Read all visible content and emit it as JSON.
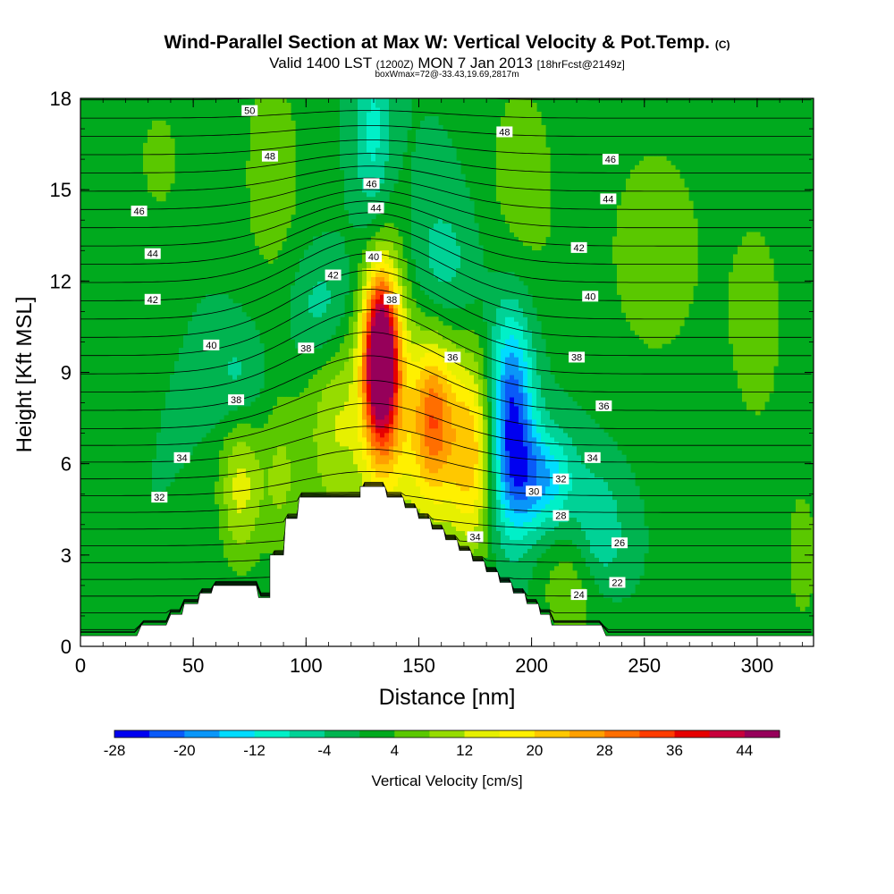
{
  "title": {
    "main": "Wind-Parallel Section at Max W: Vertical Velocity & Pot.Temp.",
    "copyright": "(C)",
    "valid_prefix": "Valid 1400 LST",
    "valid_utc": "(1200Z)",
    "valid_date": "MON 7 Jan 2013",
    "forecast": "[18hrFcst@2149z]",
    "box_info": "boxWmax=72@-33.43,19.69,2817m"
  },
  "chart_data": {
    "type": "heatmap",
    "xlabel": "Distance [nm]",
    "ylabel": "Height [Kft MSL]",
    "xlim": [
      0,
      325
    ],
    "ylim": [
      0,
      18
    ],
    "x_ticks": [
      0,
      50,
      100,
      150,
      200,
      250,
      300
    ],
    "y_ticks": [
      0,
      3,
      6,
      9,
      12,
      15,
      18
    ],
    "colorbar": {
      "label": "Vertical Velocity [cm/s]",
      "tick_labels": [
        "-28",
        "-20",
        "-12",
        "-4",
        "4",
        "12",
        "20",
        "28",
        "36",
        "44"
      ],
      "levels": [
        -28,
        -24,
        -20,
        -16,
        -12,
        -8,
        -4,
        0,
        4,
        8,
        12,
        16,
        20,
        24,
        28,
        32,
        36,
        40,
        44
      ],
      "colors": [
        "#0000f0",
        "#0a5af8",
        "#0a96f8",
        "#00dcff",
        "#00f0c8",
        "#00d296",
        "#00b450",
        "#00aa1e",
        "#5ac800",
        "#96dc00",
        "#e6f000",
        "#fff000",
        "#ffc800",
        "#ffa000",
        "#ff6e00",
        "#ff3c00",
        "#e60000",
        "#c8003c",
        "#96005a"
      ]
    },
    "terrain": [
      [
        0,
        0.35
      ],
      [
        25,
        0.35
      ],
      [
        27,
        0.7
      ],
      [
        38,
        0.7
      ],
      [
        40,
        1.05
      ],
      [
        45,
        1.05
      ],
      [
        46,
        1.4
      ],
      [
        52,
        1.4
      ],
      [
        53,
        1.75
      ],
      [
        58,
        1.75
      ],
      [
        59,
        2.0
      ],
      [
        78,
        2.0
      ],
      [
        79,
        1.6
      ],
      [
        84,
        1.6
      ],
      [
        84,
        3.0
      ],
      [
        90,
        3.0
      ],
      [
        91,
        4.2
      ],
      [
        96,
        4.2
      ],
      [
        97,
        4.9
      ],
      [
        124,
        4.9
      ],
      [
        124,
        5.25
      ],
      [
        135,
        5.25
      ],
      [
        136,
        4.9
      ],
      [
        143,
        4.9
      ],
      [
        144,
        4.55
      ],
      [
        149,
        4.55
      ],
      [
        150,
        4.2
      ],
      [
        155,
        4.2
      ],
      [
        156,
        3.85
      ],
      [
        161,
        3.85
      ],
      [
        162,
        3.5
      ],
      [
        167,
        3.5
      ],
      [
        168,
        3.15
      ],
      [
        173,
        3.15
      ],
      [
        174,
        2.8
      ],
      [
        179,
        2.8
      ],
      [
        180,
        2.45
      ],
      [
        185,
        2.45
      ],
      [
        186,
        2.1
      ],
      [
        191,
        2.1
      ],
      [
        192,
        1.75
      ],
      [
        197,
        1.75
      ],
      [
        198,
        1.4
      ],
      [
        203,
        1.4
      ],
      [
        204,
        1.05
      ],
      [
        208,
        1.05
      ],
      [
        209,
        0.7
      ],
      [
        231,
        0.7
      ],
      [
        233,
        0.35
      ],
      [
        325,
        0.35
      ]
    ],
    "w_cells": [
      {
        "x": 133,
        "y": 9.5,
        "sx": 5,
        "sy": 1.8,
        "w": 44
      },
      {
        "x": 135,
        "y": 8.5,
        "sx": 8,
        "sy": 3.5,
        "w": 20
      },
      {
        "x": 156,
        "y": 7.5,
        "sx": 6,
        "sy": 1.8,
        "w": 18
      },
      {
        "x": 158,
        "y": 7.5,
        "sx": 12,
        "sy": 3.2,
        "w": 14
      },
      {
        "x": 174,
        "y": 6.3,
        "sx": 7,
        "sy": 2.2,
        "w": 18
      },
      {
        "x": 113,
        "y": 7.5,
        "sx": 10,
        "sy": 3.0,
        "w": 12
      },
      {
        "x": 71,
        "y": 5.5,
        "sx": 7,
        "sy": 2.0,
        "w": 14
      },
      {
        "x": 89,
        "y": 5.5,
        "sx": 6,
        "sy": 2.0,
        "w": 8
      },
      {
        "x": 191,
        "y": 7.5,
        "sx": 7,
        "sy": 2.5,
        "w": -26
      },
      {
        "x": 205,
        "y": 5.5,
        "sx": 10,
        "sy": 1.2,
        "w": -16
      },
      {
        "x": 160,
        "y": 12.0,
        "sx": 12,
        "sy": 2.0,
        "w": -10
      },
      {
        "x": 108,
        "y": 11.0,
        "sx": 10,
        "sy": 1.5,
        "w": -10
      },
      {
        "x": 130,
        "y": 16.5,
        "sx": 6,
        "sy": 2.5,
        "w": -10
      },
      {
        "x": 70,
        "y": 8.5,
        "sx": 8,
        "sy": 1.5,
        "w": -8
      },
      {
        "x": 230,
        "y": 3.5,
        "sx": 8,
        "sy": 1.5,
        "w": -10
      },
      {
        "x": 85,
        "y": 15.5,
        "sx": 12,
        "sy": 3.5,
        "w": 6
      },
      {
        "x": 195,
        "y": 15.0,
        "sx": 14,
        "sy": 3.5,
        "w": 6
      },
      {
        "x": 255,
        "y": 13.0,
        "sx": 20,
        "sy": 3.5,
        "w": 6
      },
      {
        "x": 300,
        "y": 10.5,
        "sx": 10,
        "sy": 3.0,
        "w": 6
      },
      {
        "x": 35,
        "y": 16.0,
        "sx": 10,
        "sy": 2.0,
        "w": 5
      },
      {
        "x": 220,
        "y": 2.0,
        "sx": 12,
        "sy": 1.5,
        "w": 8
      },
      {
        "x": 320,
        "y": 3.0,
        "sx": 6,
        "sy": 2.0,
        "w": 6
      }
    ],
    "theta_contours": {
      "levels": [
        22,
        24,
        26,
        28,
        30,
        32,
        34,
        36,
        38,
        40,
        42,
        44,
        46,
        48,
        50
      ],
      "labels": [
        {
          "text": "50",
          "x": 75,
          "y": 17.6
        },
        {
          "text": "48",
          "x": 84,
          "y": 16.1
        },
        {
          "text": "48",
          "x": 188,
          "y": 16.9
        },
        {
          "text": "46",
          "x": 26,
          "y": 14.3
        },
        {
          "text": "46",
          "x": 129,
          "y": 15.2
        },
        {
          "text": "46",
          "x": 235,
          "y": 16.0
        },
        {
          "text": "44",
          "x": 32,
          "y": 12.9
        },
        {
          "text": "44",
          "x": 131,
          "y": 14.4
        },
        {
          "text": "44",
          "x": 234,
          "y": 14.7
        },
        {
          "text": "42",
          "x": 32,
          "y": 11.4
        },
        {
          "text": "42",
          "x": 112,
          "y": 12.2
        },
        {
          "text": "42",
          "x": 221,
          "y": 13.1
        },
        {
          "text": "40",
          "x": 58,
          "y": 9.9
        },
        {
          "text": "40",
          "x": 130,
          "y": 12.8
        },
        {
          "text": "40",
          "x": 226,
          "y": 11.5
        },
        {
          "text": "38",
          "x": 100,
          "y": 9.8
        },
        {
          "text": "38",
          "x": 138,
          "y": 11.4
        },
        {
          "text": "38",
          "x": 220,
          "y": 9.5
        },
        {
          "text": "38",
          "x": 69,
          "y": 8.1
        },
        {
          "text": "36",
          "x": 165,
          "y": 9.5
        },
        {
          "text": "36",
          "x": 232,
          "y": 7.9
        },
        {
          "text": "34",
          "x": 45,
          "y": 6.2
        },
        {
          "text": "34",
          "x": 227,
          "y": 6.2
        },
        {
          "text": "34",
          "x": 175,
          "y": 3.6
        },
        {
          "text": "32",
          "x": 35,
          "y": 4.9
        },
        {
          "text": "32",
          "x": 213,
          "y": 5.5
        },
        {
          "text": "30",
          "x": 201,
          "y": 5.1
        },
        {
          "text": "28",
          "x": 213,
          "y": 4.3
        },
        {
          "text": "26",
          "x": 239,
          "y": 3.4
        },
        {
          "text": "24",
          "x": 221,
          "y": 1.7
        },
        {
          "text": "22",
          "x": 238,
          "y": 2.1
        }
      ]
    }
  }
}
